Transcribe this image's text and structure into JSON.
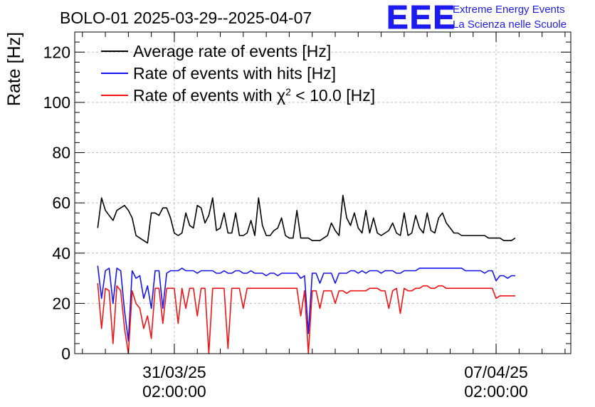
{
  "brand": {
    "logo_text": "EEE",
    "line1": "Extreme Energy Events",
    "line2": "La Scienza nelle Scuole"
  },
  "chart_data": {
    "type": "line",
    "title": "BOLO-01 2025-03-29--2025-04-07",
    "xlabel": "",
    "ylabel": "Rate [Hz]",
    "xlim": [
      "2025-03-28T22:00",
      "2025-04-08T17:00"
    ],
    "ylim": [
      0,
      128
    ],
    "yticks": [
      0,
      20,
      40,
      60,
      80,
      100,
      120
    ],
    "xticks": [
      {
        "x": "2025-03-31T02:00",
        "line1": "31/03/25",
        "line2": "02:00:00"
      },
      {
        "x": "2025-04-07T02:00",
        "line1": "07/04/25",
        "line2": "02:00:00"
      }
    ],
    "grid": true,
    "legend_position": "top-left",
    "series": [
      {
        "name": "Average rate of events [Hz]",
        "legend_main": "Average rate of events [Hz]",
        "color": "#000000",
        "x": [
          "2025-03-29T10:00",
          "2025-03-29T12:00",
          "2025-03-29T14:00",
          "2025-03-29T16:00",
          "2025-03-29T18:00",
          "2025-03-29T20:00",
          "2025-03-29T22:00",
          "2025-03-30T00:00",
          "2025-03-30T02:00",
          "2025-03-30T04:00",
          "2025-03-30T06:00",
          "2025-03-30T08:00",
          "2025-03-30T10:00",
          "2025-03-30T12:00",
          "2025-03-30T14:00",
          "2025-03-30T16:00",
          "2025-03-30T18:00",
          "2025-03-30T20:00",
          "2025-03-30T22:00",
          "2025-03-31T00:00",
          "2025-03-31T02:00",
          "2025-03-31T04:00",
          "2025-03-31T06:00",
          "2025-03-31T08:00",
          "2025-03-31T10:00",
          "2025-03-31T12:00",
          "2025-03-31T14:00",
          "2025-03-31T16:00",
          "2025-03-31T18:00",
          "2025-03-31T20:00",
          "2025-03-31T22:00",
          "2025-04-01T00:00",
          "2025-04-01T02:00",
          "2025-04-01T04:00",
          "2025-04-01T06:00",
          "2025-04-01T08:00",
          "2025-04-01T10:00",
          "2025-04-01T12:00",
          "2025-04-01T14:00",
          "2025-04-01T16:00",
          "2025-04-01T18:00",
          "2025-04-01T20:00",
          "2025-04-01T22:00",
          "2025-04-02T00:00",
          "2025-04-02T02:00",
          "2025-04-02T04:00",
          "2025-04-02T06:00",
          "2025-04-02T08:00",
          "2025-04-02T10:00",
          "2025-04-02T12:00",
          "2025-04-02T14:00",
          "2025-04-02T16:00",
          "2025-04-02T18:00",
          "2025-04-02T20:00",
          "2025-04-02T22:00",
          "2025-04-03T00:00",
          "2025-04-03T02:00",
          "2025-04-03T04:00",
          "2025-04-03T06:00",
          "2025-04-03T08:00",
          "2025-04-03T10:00",
          "2025-04-03T12:00",
          "2025-04-03T14:00",
          "2025-04-03T16:00",
          "2025-04-03T18:00",
          "2025-04-03T20:00",
          "2025-04-03T22:00",
          "2025-04-04T00:00",
          "2025-04-04T02:00",
          "2025-04-04T04:00",
          "2025-04-04T06:00",
          "2025-04-04T08:00",
          "2025-04-04T10:00",
          "2025-04-04T12:00",
          "2025-04-04T14:00",
          "2025-04-04T16:00",
          "2025-04-04T18:00",
          "2025-04-04T20:00",
          "2025-04-04T22:00",
          "2025-04-05T00:00",
          "2025-04-05T02:00",
          "2025-04-05T04:00",
          "2025-04-05T06:00",
          "2025-04-05T08:00",
          "2025-04-05T10:00",
          "2025-04-05T12:00",
          "2025-04-05T14:00",
          "2025-04-05T16:00",
          "2025-04-05T18:00",
          "2025-04-05T20:00",
          "2025-04-05T22:00",
          "2025-04-06T00:00",
          "2025-04-06T02:00",
          "2025-04-06T04:00",
          "2025-04-06T06:00",
          "2025-04-06T08:00",
          "2025-04-06T10:00",
          "2025-04-06T12:00",
          "2025-04-06T14:00",
          "2025-04-06T16:00",
          "2025-04-06T18:00",
          "2025-04-06T20:00",
          "2025-04-06T22:00",
          "2025-04-07T00:00",
          "2025-04-07T02:00",
          "2025-04-07T04:00",
          "2025-04-07T06:00",
          "2025-04-07T08:00",
          "2025-04-07T10:00",
          "2025-04-07T12:00"
        ],
        "values": [
          50,
          62,
          57,
          55,
          53,
          57,
          58,
          59,
          57,
          54,
          47,
          46,
          45,
          44,
          56,
          56,
          55,
          58,
          58,
          54,
          48,
          47,
          48,
          56,
          51,
          50,
          59,
          58,
          52,
          55,
          62,
          49,
          50,
          56,
          48,
          48,
          56,
          47,
          47,
          48,
          53,
          47,
          62,
          51,
          47,
          47,
          49,
          50,
          54,
          47,
          46,
          46,
          57,
          46,
          46,
          46,
          45,
          45,
          45,
          46,
          47,
          52,
          49,
          47,
          63,
          54,
          51,
          56,
          50,
          48,
          57,
          48,
          54,
          48,
          47,
          48,
          49,
          52,
          48,
          47,
          56,
          47,
          48,
          55,
          50,
          48,
          56,
          49,
          48,
          54,
          56,
          52,
          50,
          48,
          48,
          47,
          47,
          47,
          47,
          47,
          47,
          47,
          46,
          46,
          46,
          46,
          45,
          45,
          45,
          46
        ]
      },
      {
        "name": "Rate of events with hits [Hz]",
        "legend_main": "Rate of events with hits [Hz]",
        "color": "#1414f0",
        "x": [
          "2025-03-29T10:00",
          "2025-03-29T12:00",
          "2025-03-29T14:00",
          "2025-03-29T16:00",
          "2025-03-29T18:00",
          "2025-03-29T20:00",
          "2025-03-29T22:00",
          "2025-03-30T00:00",
          "2025-03-30T02:00",
          "2025-03-30T04:00",
          "2025-03-30T06:00",
          "2025-03-30T08:00",
          "2025-03-30T10:00",
          "2025-03-30T12:00",
          "2025-03-30T14:00",
          "2025-03-30T16:00",
          "2025-03-30T18:00",
          "2025-03-30T20:00",
          "2025-03-30T22:00",
          "2025-03-31T00:00",
          "2025-03-31T02:00",
          "2025-03-31T04:00",
          "2025-03-31T06:00",
          "2025-03-31T08:00",
          "2025-03-31T10:00",
          "2025-03-31T12:00",
          "2025-03-31T14:00",
          "2025-03-31T16:00",
          "2025-03-31T18:00",
          "2025-03-31T20:00",
          "2025-03-31T22:00",
          "2025-04-01T00:00",
          "2025-04-01T02:00",
          "2025-04-01T04:00",
          "2025-04-01T06:00",
          "2025-04-01T08:00",
          "2025-04-01T10:00",
          "2025-04-01T12:00",
          "2025-04-01T14:00",
          "2025-04-01T16:00",
          "2025-04-01T18:00",
          "2025-04-01T20:00",
          "2025-04-01T22:00",
          "2025-04-02T00:00",
          "2025-04-02T02:00",
          "2025-04-02T04:00",
          "2025-04-02T06:00",
          "2025-04-02T08:00",
          "2025-04-02T10:00",
          "2025-04-02T12:00",
          "2025-04-02T14:00",
          "2025-04-02T16:00",
          "2025-04-02T18:00",
          "2025-04-02T20:00",
          "2025-04-02T22:00",
          "2025-04-03T00:00",
          "2025-04-03T02:00",
          "2025-04-03T04:00",
          "2025-04-03T06:00",
          "2025-04-03T08:00",
          "2025-04-03T10:00",
          "2025-04-03T12:00",
          "2025-04-03T14:00",
          "2025-04-03T16:00",
          "2025-04-03T18:00",
          "2025-04-03T20:00",
          "2025-04-03T22:00",
          "2025-04-04T00:00",
          "2025-04-04T02:00",
          "2025-04-04T04:00",
          "2025-04-04T06:00",
          "2025-04-04T08:00",
          "2025-04-04T10:00",
          "2025-04-04T12:00",
          "2025-04-04T14:00",
          "2025-04-04T16:00",
          "2025-04-04T18:00",
          "2025-04-04T20:00",
          "2025-04-04T22:00",
          "2025-04-05T00:00",
          "2025-04-05T02:00",
          "2025-04-05T04:00",
          "2025-04-05T06:00",
          "2025-04-05T08:00",
          "2025-04-05T10:00",
          "2025-04-05T12:00",
          "2025-04-05T14:00",
          "2025-04-05T16:00",
          "2025-04-05T18:00",
          "2025-04-05T20:00",
          "2025-04-05T22:00",
          "2025-04-06T00:00",
          "2025-04-06T02:00",
          "2025-04-06T04:00",
          "2025-04-06T06:00",
          "2025-04-06T08:00",
          "2025-04-06T10:00",
          "2025-04-06T12:00",
          "2025-04-06T14:00",
          "2025-04-06T16:00",
          "2025-04-06T18:00",
          "2025-04-06T20:00",
          "2025-04-06T22:00",
          "2025-04-07T00:00",
          "2025-04-07T02:00",
          "2025-04-07T04:00",
          "2025-04-07T06:00",
          "2025-04-07T08:00",
          "2025-04-07T10:00",
          "2025-04-07T12:00"
        ],
        "values": [
          35,
          22,
          33,
          34,
          20,
          34,
          33,
          17,
          5,
          33,
          30,
          31,
          22,
          27,
          18,
          33,
          33,
          18,
          32,
          33,
          33,
          33,
          34,
          33,
          33,
          33,
          32,
          33,
          33,
          33,
          33,
          32,
          32,
          33,
          32,
          32,
          33,
          33,
          32,
          32,
          33,
          32,
          32,
          32,
          31,
          32,
          32,
          31,
          32,
          32,
          32,
          32,
          32,
          30,
          31,
          8,
          32,
          32,
          28,
          32,
          32,
          32,
          28,
          32,
          32,
          32,
          33,
          33,
          32,
          33,
          32,
          33,
          33,
          33,
          32,
          33,
          33,
          33,
          32,
          32,
          33,
          33,
          33,
          33,
          34,
          34,
          34,
          34,
          34,
          34,
          34,
          34,
          34,
          34,
          34,
          34,
          33,
          33,
          33,
          33,
          33,
          32,
          33,
          33,
          29,
          31,
          31,
          30,
          31,
          31
        ]
      },
      {
        "name": "Rate of events with χ² < 10.0 [Hz]",
        "legend_main": "Rate of events with χ",
        "legend_sup": "2",
        "legend_rest": " < 10.0 [Hz]",
        "color": "#f01414",
        "x": [
          "2025-03-29T10:00",
          "2025-03-29T12:00",
          "2025-03-29T14:00",
          "2025-03-29T16:00",
          "2025-03-29T18:00",
          "2025-03-29T20:00",
          "2025-03-29T22:00",
          "2025-03-30T00:00",
          "2025-03-30T02:00",
          "2025-03-30T04:00",
          "2025-03-30T06:00",
          "2025-03-30T08:00",
          "2025-03-30T10:00",
          "2025-03-30T12:00",
          "2025-03-30T14:00",
          "2025-03-30T16:00",
          "2025-03-30T18:00",
          "2025-03-30T20:00",
          "2025-03-30T22:00",
          "2025-03-31T00:00",
          "2025-03-31T02:00",
          "2025-03-31T04:00",
          "2025-03-31T06:00",
          "2025-03-31T08:00",
          "2025-03-31T10:00",
          "2025-03-31T12:00",
          "2025-03-31T14:00",
          "2025-03-31T16:00",
          "2025-03-31T18:00",
          "2025-03-31T20:00",
          "2025-03-31T22:00",
          "2025-04-01T00:00",
          "2025-04-01T02:00",
          "2025-04-01T04:00",
          "2025-04-01T06:00",
          "2025-04-01T08:00",
          "2025-04-01T10:00",
          "2025-04-01T12:00",
          "2025-04-01T14:00",
          "2025-04-01T16:00",
          "2025-04-01T18:00",
          "2025-04-01T20:00",
          "2025-04-01T22:00",
          "2025-04-02T00:00",
          "2025-04-02T02:00",
          "2025-04-02T04:00",
          "2025-04-02T06:00",
          "2025-04-02T08:00",
          "2025-04-02T10:00",
          "2025-04-02T12:00",
          "2025-04-02T14:00",
          "2025-04-02T16:00",
          "2025-04-02T18:00",
          "2025-04-02T20:00",
          "2025-04-02T22:00",
          "2025-04-03T00:00",
          "2025-04-03T02:00",
          "2025-04-03T04:00",
          "2025-04-03T06:00",
          "2025-04-03T08:00",
          "2025-04-03T10:00",
          "2025-04-03T12:00",
          "2025-04-03T14:00",
          "2025-04-03T16:00",
          "2025-04-03T18:00",
          "2025-04-03T20:00",
          "2025-04-03T22:00",
          "2025-04-04T00:00",
          "2025-04-04T02:00",
          "2025-04-04T04:00",
          "2025-04-04T06:00",
          "2025-04-04T08:00",
          "2025-04-04T10:00",
          "2025-04-04T12:00",
          "2025-04-04T14:00",
          "2025-04-04T16:00",
          "2025-04-04T18:00",
          "2025-04-04T20:00",
          "2025-04-04T22:00",
          "2025-04-05T00:00",
          "2025-04-05T02:00",
          "2025-04-05T04:00",
          "2025-04-05T06:00",
          "2025-04-05T08:00",
          "2025-04-05T10:00",
          "2025-04-05T12:00",
          "2025-04-05T14:00",
          "2025-04-05T16:00",
          "2025-04-05T18:00",
          "2025-04-05T20:00",
          "2025-04-05T22:00",
          "2025-04-06T00:00",
          "2025-04-06T02:00",
          "2025-04-06T04:00",
          "2025-04-06T06:00",
          "2025-04-06T08:00",
          "2025-04-06T10:00",
          "2025-04-06T12:00",
          "2025-04-06T14:00",
          "2025-04-06T16:00",
          "2025-04-06T18:00",
          "2025-04-06T20:00",
          "2025-04-06T22:00",
          "2025-04-07T00:00",
          "2025-04-07T02:00",
          "2025-04-07T04:00",
          "2025-04-07T06:00",
          "2025-04-07T08:00",
          "2025-04-07T10:00",
          "2025-04-07T12:00"
        ],
        "values": [
          28,
          10,
          26,
          25,
          4,
          27,
          25,
          10,
          0,
          25,
          20,
          18,
          10,
          15,
          6,
          26,
          26,
          12,
          26,
          26,
          26,
          12,
          26,
          18,
          26,
          26,
          15,
          26,
          26,
          0,
          26,
          26,
          26,
          26,
          2,
          26,
          26,
          26,
          18,
          26,
          26,
          26,
          26,
          26,
          26,
          26,
          26,
          26,
          26,
          26,
          26,
          26,
          26,
          15,
          25,
          0,
          25,
          25,
          18,
          25,
          25,
          25,
          20,
          25,
          25,
          24,
          25,
          25,
          25,
          25,
          25,
          26,
          26,
          26,
          25,
          25,
          18,
          25,
          26,
          16,
          26,
          25,
          25,
          26,
          26,
          27,
          27,
          26,
          26,
          27,
          27,
          26,
          26,
          26,
          26,
          26,
          26,
          26,
          26,
          26,
          26,
          26,
          26,
          26,
          22,
          23,
          23,
          23,
          23,
          23
        ]
      }
    ]
  }
}
